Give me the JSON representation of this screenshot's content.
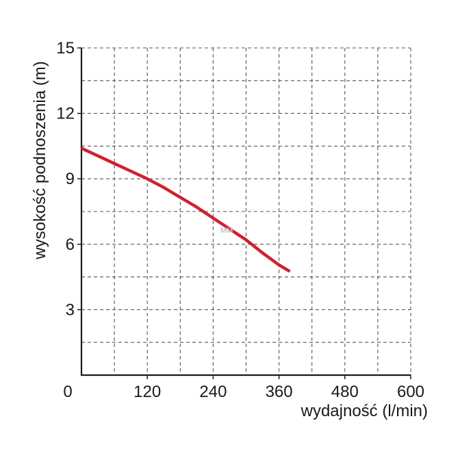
{
  "chart_data": {
    "type": "line",
    "xlabel": "wydajność (l/min)",
    "ylabel": "wysokość podnoszenia (m)",
    "xlim": [
      0,
      600
    ],
    "ylim": [
      0,
      15
    ],
    "x_ticks": [
      0,
      120,
      240,
      360,
      480,
      600
    ],
    "y_ticks": [
      3,
      6,
      9,
      12,
      15
    ],
    "grid": true,
    "grid_style": "dashed",
    "watermark": "MM",
    "series": [
      {
        "color": "#d0202e",
        "x": [
          0,
          30,
          60,
          90,
          120,
          150,
          180,
          210,
          240,
          270,
          300,
          330,
          360,
          380
        ],
        "y": [
          10.4,
          10.05,
          9.7,
          9.35,
          9.0,
          8.6,
          8.15,
          7.7,
          7.2,
          6.7,
          6.2,
          5.6,
          5.05,
          4.75
        ]
      }
    ]
  }
}
